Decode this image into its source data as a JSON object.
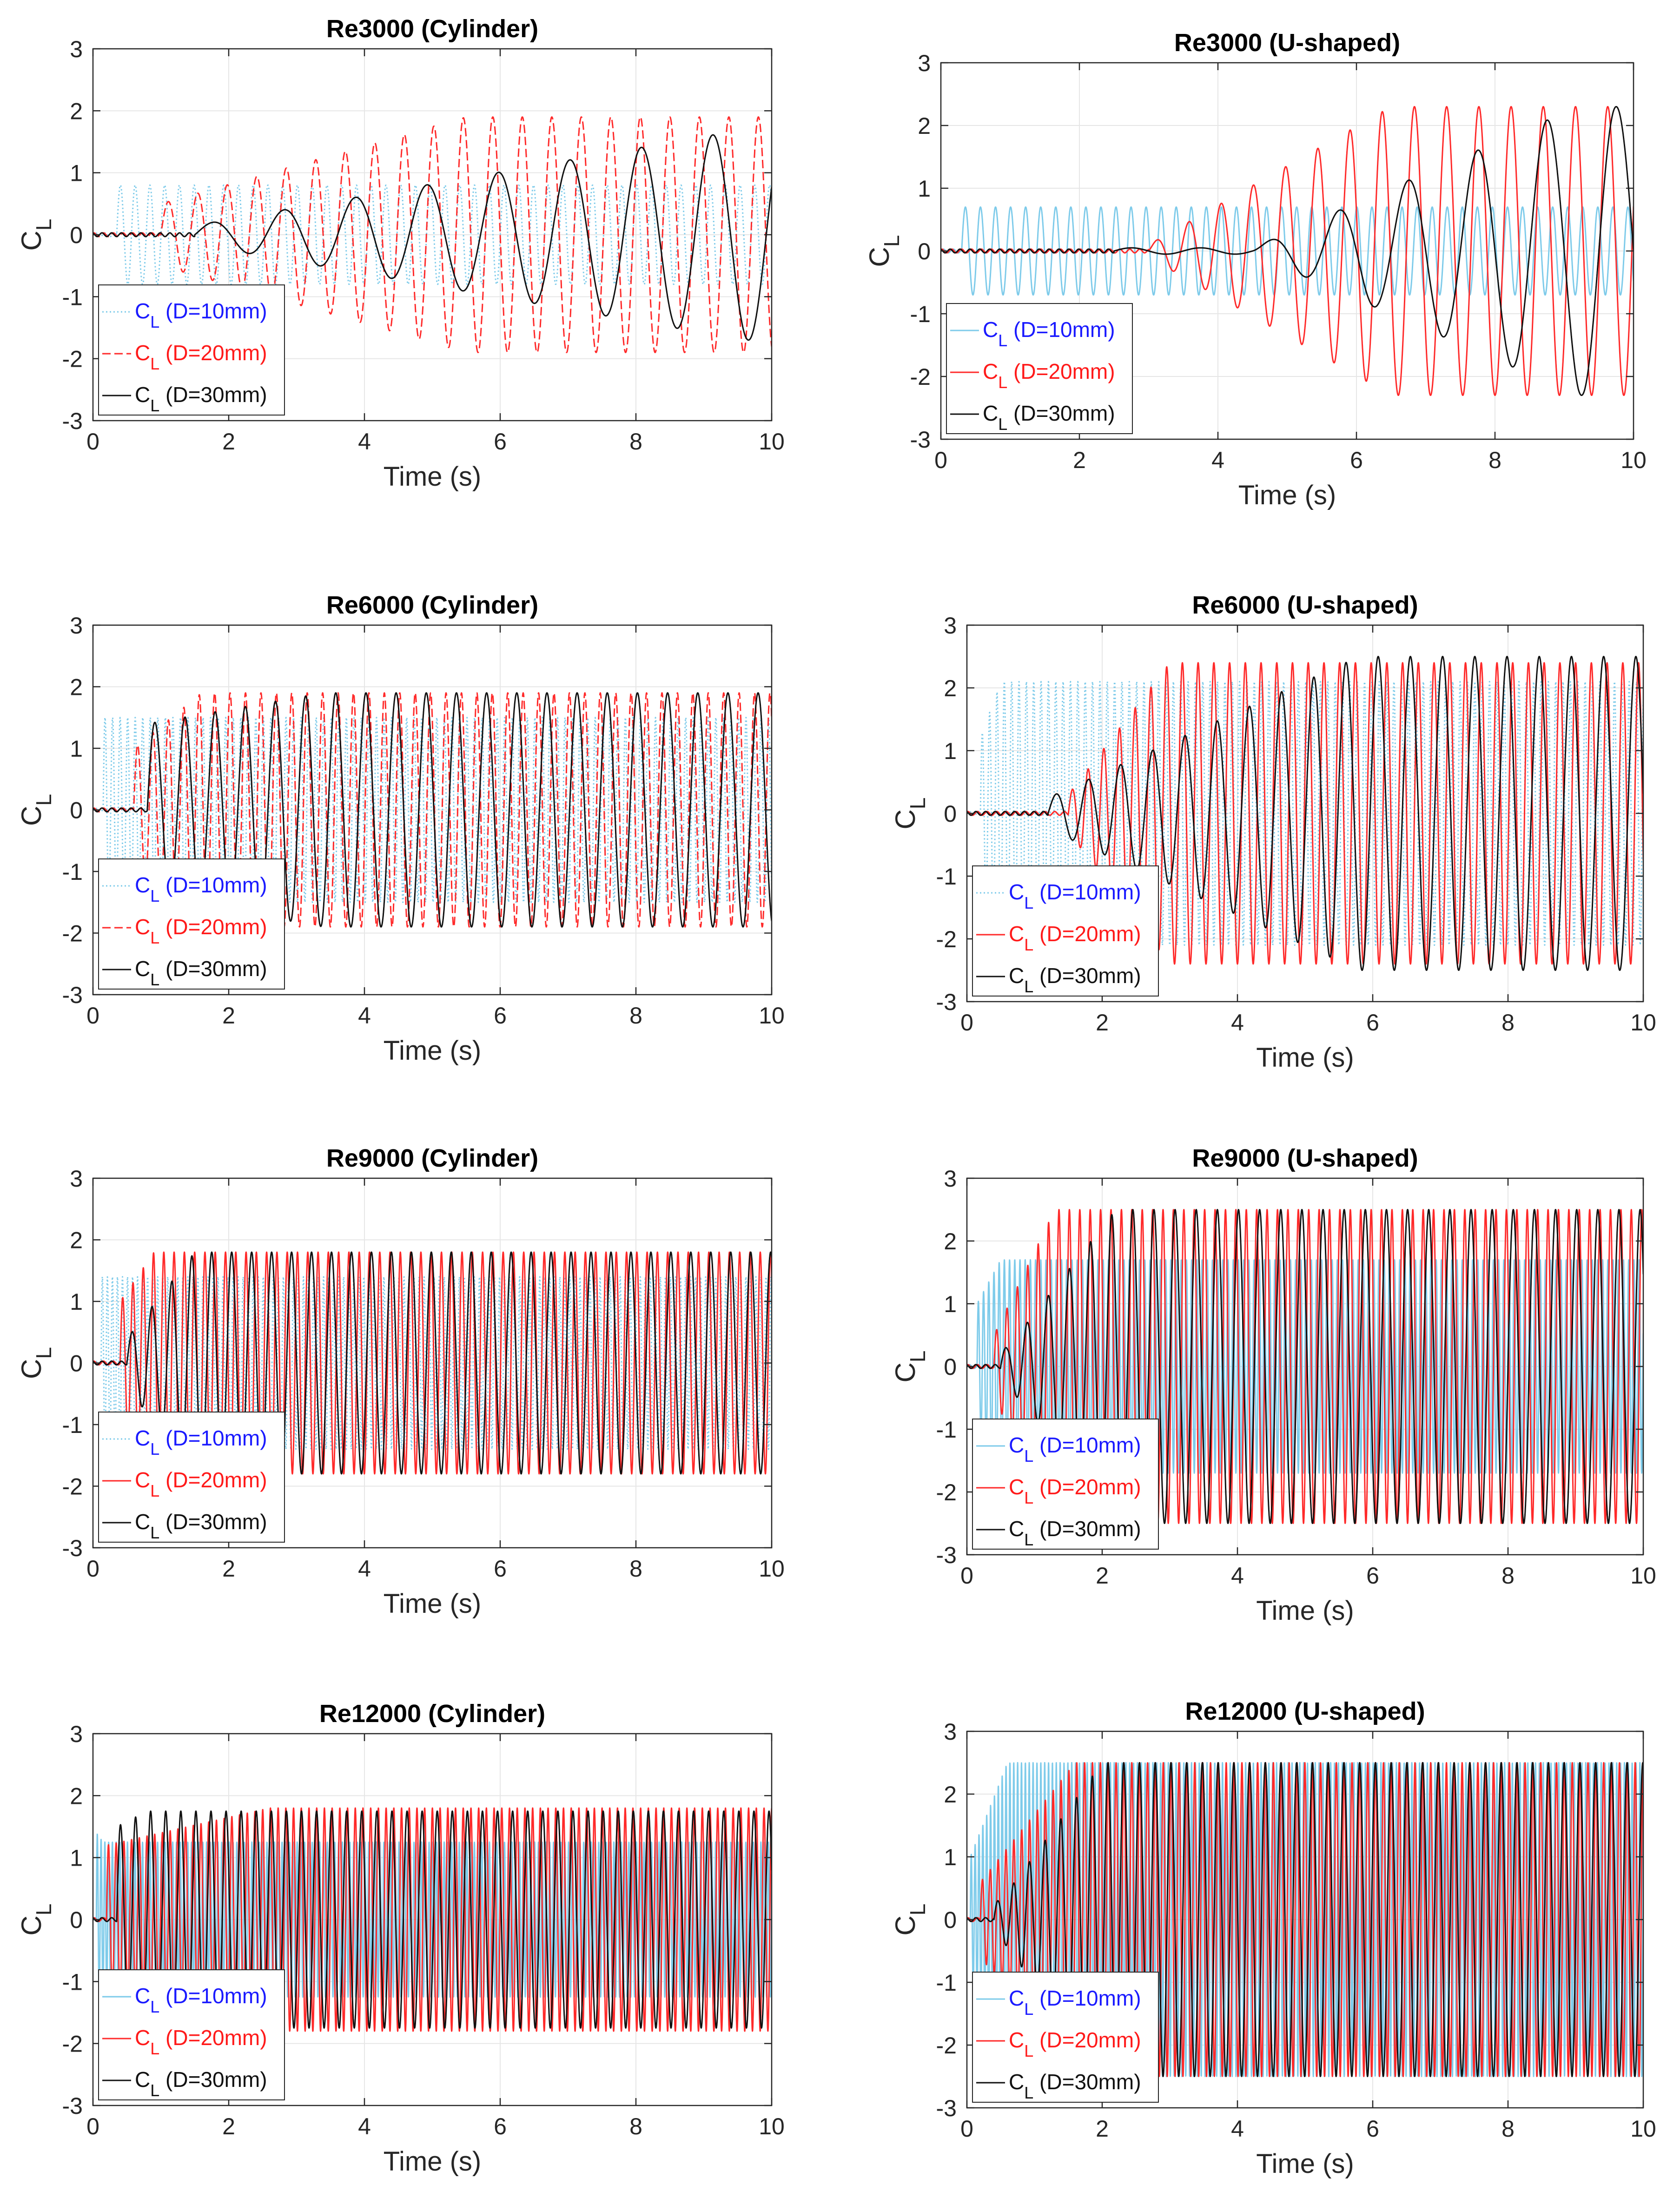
{
  "figure": {
    "panels": [
      {
        "title": "Re3000 (Cylinder)",
        "xlabel": "Time (s)"
      },
      {
        "title": "Re3000 (U-shaped)",
        "xlabel": "Time (s)"
      },
      {
        "title": "Re6000 (Cylinder)",
        "xlabel": "Time (s)"
      },
      {
        "title": "Re6000 (U-shaped)",
        "xlabel": "Time (s)"
      },
      {
        "title": "Re9000 (Cylinder)",
        "xlabel": "Time (s)"
      },
      {
        "title": "Re9000 (U-shaped)",
        "xlabel": "Time (s)"
      },
      {
        "title": "Re12000 (Cylinder)",
        "xlabel": "Time (s)"
      },
      {
        "title": "Re12000 (U-shaped)",
        "xlabel": "Time (s)"
      }
    ],
    "ylabel_main": "C",
    "ylabel_sub": "L",
    "legend": [
      {
        "main": "C",
        "sub": "L",
        "rest": " (D=10mm)",
        "color": "#1a1aff",
        "line_color": "#7ecbea",
        "dash": "3,5"
      },
      {
        "main": "C",
        "sub": "L",
        "rest": " (D=20mm)",
        "color": "#ff1a1a",
        "line_color": "#ff2a2a",
        "dash": "18,8"
      },
      {
        "main": "C",
        "sub": "L",
        "rest": " (D=30mm)",
        "color": "#111111",
        "line_color": "#111111",
        "dash": ""
      }
    ]
  },
  "chart_data": [
    {
      "type": "line",
      "title": "Re3000 (Cylinder)",
      "xlabel": "Time (s)",
      "ylabel": "C_L",
      "xlim": [
        0,
        10
      ],
      "ylim": [
        -3,
        3
      ],
      "xticks": [
        0,
        2,
        4,
        6,
        8,
        10
      ],
      "yticks": [
        -3,
        -2,
        -1,
        0,
        1,
        2,
        3
      ],
      "grid": true,
      "legend_position": "bottom-left",
      "series": [
        {
          "name": "C_L (D=10mm)",
          "color": "#7ecbea",
          "style": "dotted",
          "freq_hz": 4.6,
          "onset_s": 0.35,
          "amplitude_start": 0.8,
          "amplitude_end": 0.8,
          "grow_start_s": 0.35,
          "grow_end_s": 0.6
        },
        {
          "name": "C_L (D=20mm)",
          "color": "#ff2a2a",
          "style": "dashed",
          "freq_hz": 2.3,
          "onset_s": 1.0,
          "amplitude_start": 0.5,
          "amplitude_end": 1.9,
          "grow_start_s": 1.0,
          "grow_end_s": 5.5
        },
        {
          "name": "C_L (D=30mm)",
          "color": "#111111",
          "style": "solid",
          "freq_hz": 0.95,
          "onset_s": 1.5,
          "amplitude_start": 0.15,
          "amplitude_end": 1.7,
          "grow_start_s": 1.5,
          "grow_end_s": 9.6
        }
      ]
    },
    {
      "type": "line",
      "title": "Re3000 (U-shaped)",
      "xlabel": "Time (s)",
      "ylabel": "C_L",
      "xlim": [
        0,
        10
      ],
      "ylim": [
        -3,
        3
      ],
      "xticks": [
        0,
        2,
        4,
        6,
        8,
        10
      ],
      "yticks": [
        -3,
        -2,
        -1,
        0,
        1,
        2,
        3
      ],
      "grid": true,
      "legend_position": "bottom-left",
      "series": [
        {
          "name": "C_L (D=10mm)",
          "color": "#7ecbea",
          "style": "solid",
          "freq_hz": 4.6,
          "onset_s": 0.3,
          "amplitude_start": 0.7,
          "amplitude_end": 0.7,
          "grow_start_s": 0.3,
          "grow_end_s": 0.8
        },
        {
          "name": "C_L (D=20mm)",
          "color": "#ff2a2a",
          "style": "solid",
          "freq_hz": 2.15,
          "onset_s": 3.0,
          "amplitude_start": 0.1,
          "amplitude_end": 2.3,
          "grow_start_s": 3.0,
          "grow_end_s": 6.5
        },
        {
          "name": "C_L (D=30mm)",
          "color": "#111111",
          "style": "solid",
          "freq_hz": 1.0,
          "onset_s": 2.5,
          "amplitude_start": 0.05,
          "amplitude_end": 2.3,
          "grow_start_s": 4.5,
          "grow_end_s": 9.2
        }
      ]
    },
    {
      "type": "line",
      "title": "Re6000 (Cylinder)",
      "xlabel": "Time (s)",
      "ylabel": "C_L",
      "xlim": [
        0,
        10
      ],
      "ylim": [
        -3,
        3
      ],
      "xticks": [
        0,
        2,
        4,
        6,
        8,
        10
      ],
      "yticks": [
        -3,
        -2,
        -1,
        0,
        1,
        2,
        3
      ],
      "grid": true,
      "legend_position": "bottom-left",
      "series": [
        {
          "name": "C_L (D=10mm)",
          "color": "#7ecbea",
          "style": "dotted",
          "freq_hz": 9.0,
          "onset_s": 0.15,
          "amplitude_start": 1.5,
          "amplitude_end": 1.5,
          "grow_start_s": 0.15,
          "grow_end_s": 0.3
        },
        {
          "name": "C_L (D=20mm)",
          "color": "#ff2a2a",
          "style": "dashed",
          "freq_hz": 4.4,
          "onset_s": 0.6,
          "amplitude_start": 1.0,
          "amplitude_end": 1.9,
          "grow_start_s": 0.6,
          "grow_end_s": 1.6
        },
        {
          "name": "C_L (D=30mm)",
          "color": "#111111",
          "style": "solid",
          "freq_hz": 2.25,
          "onset_s": 0.8,
          "amplitude_start": 1.4,
          "amplitude_end": 1.9,
          "grow_start_s": 0.8,
          "grow_end_s": 3.4
        }
      ]
    },
    {
      "type": "line",
      "title": "Re6000 (U-shaped)",
      "xlabel": "Time (s)",
      "ylabel": "C_L",
      "xlim": [
        0,
        10
      ],
      "ylim": [
        -3,
        3
      ],
      "xticks": [
        0,
        2,
        4,
        6,
        8,
        10
      ],
      "yticks": [
        -3,
        -2,
        -1,
        0,
        1,
        2,
        3
      ],
      "grid": true,
      "legend_position": "bottom-left",
      "series": [
        {
          "name": "C_L (D=10mm)",
          "color": "#7ecbea",
          "style": "dotted",
          "freq_hz": 9.2,
          "onset_s": 0.2,
          "amplitude_start": 1.2,
          "amplitude_end": 2.1,
          "grow_start_s": 0.2,
          "grow_end_s": 0.5
        },
        {
          "name": "C_L (D=20mm)",
          "color": "#ff2a2a",
          "style": "solid",
          "freq_hz": 4.3,
          "onset_s": 1.5,
          "amplitude_start": 0.3,
          "amplitude_end": 2.4,
          "grow_start_s": 1.5,
          "grow_end_s": 3.0
        },
        {
          "name": "C_L (D=30mm)",
          "color": "#111111",
          "style": "solid",
          "freq_hz": 2.1,
          "onset_s": 1.2,
          "amplitude_start": 0.25,
          "amplitude_end": 2.5,
          "grow_start_s": 1.2,
          "grow_end_s": 5.8
        }
      ]
    },
    {
      "type": "line",
      "title": "Re9000 (Cylinder)",
      "xlabel": "Time (s)",
      "ylabel": "C_L",
      "xlim": [
        0,
        10
      ],
      "ylim": [
        -3,
        3
      ],
      "xticks": [
        0,
        2,
        4,
        6,
        8,
        10
      ],
      "yticks": [
        -3,
        -2,
        -1,
        0,
        1,
        2,
        3
      ],
      "grid": true,
      "legend_position": "bottom-left",
      "series": [
        {
          "name": "C_L (D=10mm)",
          "color": "#7ecbea",
          "style": "dotted",
          "freq_hz": 13.5,
          "onset_s": 0.12,
          "amplitude_start": 1.4,
          "amplitude_end": 1.4,
          "grow_start_s": 0.12,
          "grow_end_s": 0.25
        },
        {
          "name": "C_L (D=20mm)",
          "color": "#ff2a2a",
          "style": "solid",
          "freq_hz": 6.6,
          "onset_s": 0.4,
          "amplitude_start": 1.0,
          "amplitude_end": 1.8,
          "grow_start_s": 0.4,
          "grow_end_s": 0.9
        },
        {
          "name": "C_L (D=30mm)",
          "color": "#111111",
          "style": "solid",
          "freq_hz": 3.4,
          "onset_s": 0.5,
          "amplitude_start": 0.4,
          "amplitude_end": 1.8,
          "grow_start_s": 0.5,
          "grow_end_s": 1.5
        }
      ]
    },
    {
      "type": "line",
      "title": "Re9000 (U-shaped)",
      "xlabel": "Time (s)",
      "ylabel": "C_L",
      "xlim": [
        0,
        10
      ],
      "ylim": [
        -3,
        3
      ],
      "xticks": [
        0,
        2,
        4,
        6,
        8,
        10
      ],
      "yticks": [
        -3,
        -2,
        -1,
        0,
        1,
        2,
        3
      ],
      "grid": true,
      "legend_position": "bottom-left",
      "series": [
        {
          "name": "C_L (D=10mm)",
          "color": "#7ecbea",
          "style": "solid",
          "freq_hz": 13.0,
          "onset_s": 0.15,
          "amplitude_start": 1.0,
          "amplitude_end": 1.7,
          "grow_start_s": 0.15,
          "grow_end_s": 0.5
        },
        {
          "name": "C_L (D=20mm)",
          "color": "#ff2a2a",
          "style": "solid",
          "freq_hz": 6.5,
          "onset_s": 0.4,
          "amplitude_start": 0.5,
          "amplitude_end": 2.5,
          "grow_start_s": 0.4,
          "grow_end_s": 1.3
        },
        {
          "name": "C_L (D=30mm)",
          "color": "#111111",
          "style": "solid",
          "freq_hz": 3.2,
          "onset_s": 0.5,
          "amplitude_start": 0.3,
          "amplitude_end": 2.5,
          "grow_start_s": 0.6,
          "grow_end_s": 2.2
        }
      ]
    },
    {
      "type": "line",
      "title": "Re12000 (Cylinder)",
      "xlabel": "Time (s)",
      "ylabel": "C_L",
      "xlim": [
        0,
        10
      ],
      "ylim": [
        -3,
        3
      ],
      "xticks": [
        0,
        2,
        4,
        6,
        8,
        10
      ],
      "yticks": [
        -3,
        -2,
        -1,
        0,
        1,
        2,
        3
      ],
      "grid": true,
      "legend_position": "bottom-left",
      "series": [
        {
          "name": "C_L (D=10mm)",
          "color": "#7ecbea",
          "style": "solid",
          "freq_hz": 18.0,
          "onset_s": 0.05,
          "amplitude_start": 1.4,
          "amplitude_end": 1.25,
          "grow_start_s": 0.05,
          "grow_end_s": 0.15
        },
        {
          "name": "C_L (D=20mm)",
          "color": "#ff2a2a",
          "style": "solid",
          "freq_hz": 8.8,
          "onset_s": 0.2,
          "amplitude_start": 1.2,
          "amplitude_end": 1.8,
          "grow_start_s": 0.2,
          "grow_end_s": 2.6
        },
        {
          "name": "C_L (D=30mm)",
          "color": "#111111",
          "style": "solid",
          "freq_hz": 4.5,
          "onset_s": 0.35,
          "amplitude_start": 1.5,
          "amplitude_end": 1.75,
          "grow_start_s": 0.35,
          "grow_end_s": 0.8
        }
      ]
    },
    {
      "type": "line",
      "title": "Re12000 (U-shaped)",
      "xlabel": "Time (s)",
      "ylabel": "C_L",
      "xlim": [
        0,
        10
      ],
      "ylim": [
        -3,
        3
      ],
      "xticks": [
        0,
        2,
        4,
        6,
        8,
        10
      ],
      "yticks": [
        -3,
        -2,
        -1,
        0,
        1,
        2,
        3
      ],
      "grid": true,
      "legend_position": "bottom-left",
      "series": [
        {
          "name": "C_L (D=10mm)",
          "color": "#7ecbea",
          "style": "solid",
          "freq_hz": 17.5,
          "onset_s": 0.05,
          "amplitude_start": 1.0,
          "amplitude_end": 2.5,
          "grow_start_s": 0.05,
          "grow_end_s": 0.6
        },
        {
          "name": "C_L (D=20mm)",
          "color": "#ff2a2a",
          "style": "solid",
          "freq_hz": 8.6,
          "onset_s": 0.2,
          "amplitude_start": 0.6,
          "amplitude_end": 2.5,
          "grow_start_s": 0.2,
          "grow_end_s": 1.6
        },
        {
          "name": "C_L (D=30mm)",
          "color": "#111111",
          "style": "solid",
          "freq_hz": 4.3,
          "onset_s": 0.4,
          "amplitude_start": 0.3,
          "amplitude_end": 2.5,
          "grow_start_s": 0.5,
          "grow_end_s": 2.0
        }
      ]
    }
  ]
}
